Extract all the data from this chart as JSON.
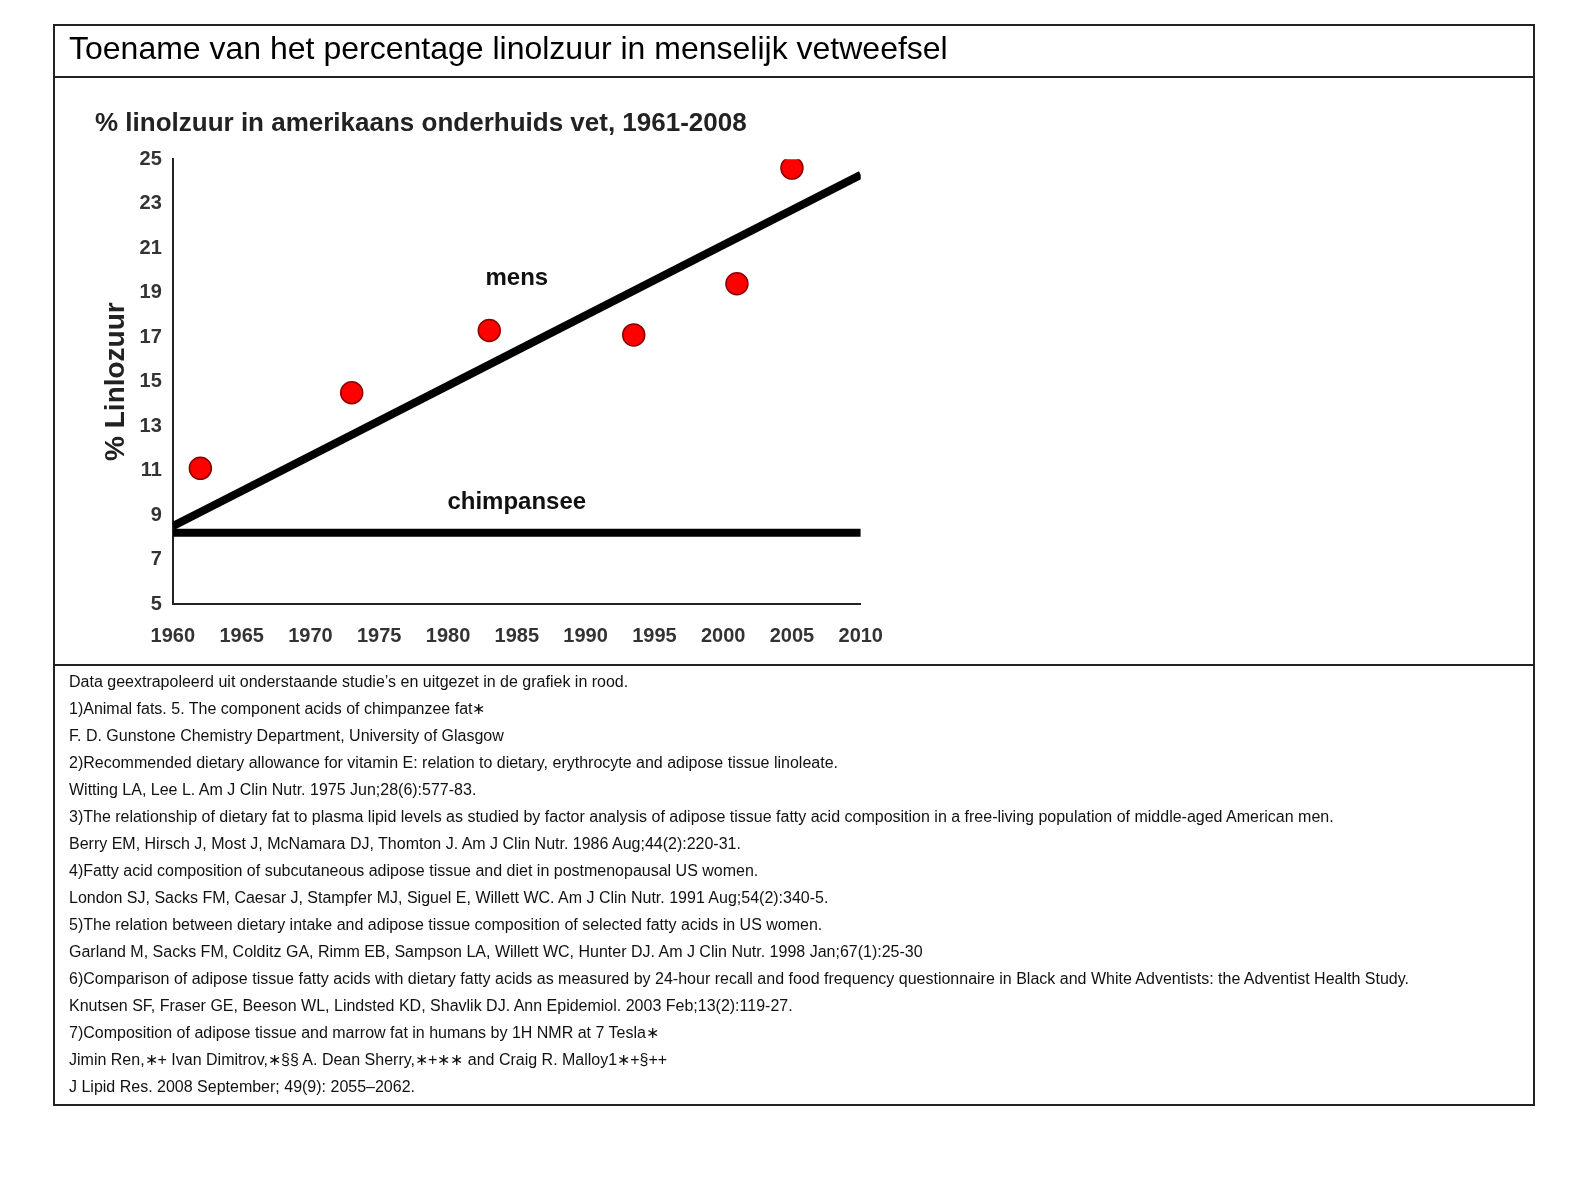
{
  "chart_data": {
    "type": "scatter",
    "title": "Toename van het percentage linolzuur in menselijk vetweefsel",
    "subtitle": "% linolzuur in amerikaans onderhuids vet, 1961-2008",
    "ylabel": "% Linlozuur",
    "series": [
      {
        "type": "line",
        "name": "mens",
        "color": "#000000",
        "x": [
          1960,
          2010
        ],
        "values": [
          8.5,
          24.3
        ],
        "marker": "none"
      },
      {
        "type": "line",
        "name": "chimpansee",
        "color": "#000000",
        "x": [
          1960,
          2010
        ],
        "values": [
          8.2,
          8.2
        ],
        "marker": "none"
      },
      {
        "type": "scatter",
        "color": "#ff0000",
        "x": [
          1962,
          1973,
          1983,
          1993.5,
          2001,
          2005
        ],
        "values": [
          11.1,
          14.5,
          17.3,
          17.1,
          19.4,
          24.6
        ],
        "marker": "circle"
      }
    ],
    "xlim": [
      1960,
      2010
    ],
    "xticks": [
      1960,
      1965,
      1970,
      1975,
      1980,
      1985,
      1990,
      1995,
      2000,
      2005,
      2010
    ],
    "ylim": [
      5,
      25
    ],
    "yticks": [
      5,
      7,
      9,
      11,
      13,
      15,
      17,
      19,
      21,
      23,
      25
    ],
    "grid": false,
    "legend": false,
    "annotations": [
      "Data geextrapoleerd uit onderstaande studie’s en uitgezet in de grafiek in rood.",
      "1)Animal fats. 5. The component acids of chimpanzee fat∗",
      "F. D. Gunstone Chemistry Department, University of Glasgow",
      "2)Recommended dietary allowance for vitamin E: relation to dietary, erythrocyte and adipose tissue linoleate.",
      "Witting LA, Lee L. Am J Clin Nutr. 1975 Jun;28(6):577-83.",
      "3)The relationship of dietary fat to plasma lipid levels as studied by factor analysis of adipose tissue fatty acid composition in a free-living population of middle-aged American men.",
      "Berry EM, Hirsch J, Most J, McNamara DJ, Thomton J. Am J Clin Nutr. 1986 Aug;44(2):220-31.",
      "4)Fatty acid composition of subcutaneous adipose tissue and diet in postmenopausal US women.",
      "London SJ, Sacks FM, Caesar J, Stampfer MJ, Siguel E, Willett WC. Am J Clin Nutr. 1991 Aug;54(2):340-5.",
      "5)The relation between dietary intake and adipose tissue composition of selected fatty acids in US women.",
      "Garland M, Sacks FM, Colditz GA, Rimm EB, Sampson LA, Willett WC, Hunter DJ. Am J Clin Nutr. 1998 Jan;67(1):25-30",
      "6)Comparison of adipose tissue fatty acids with dietary fatty acids as measured by 24-hour recall and food frequency questionnaire in Black and White Adventists: the Adventist Health Study.",
      "Knutsen SF, Fraser GE, Beeson WL, Lindsted KD, Shavlik DJ. Ann Epidemiol. 2003 Feb;13(2):119-27.",
      "7)Composition of adipose tissue and marrow fat in humans by 1H NMR at 7 Tesla∗",
      "Jimin Ren,∗+ Ivan Dimitrov,∗§§ A. Dean Sherry,∗+∗∗ and Craig R. Malloy1∗+§++",
      "J Lipid Res. 2008 September; 49(9): 2055–2062."
    ]
  }
}
